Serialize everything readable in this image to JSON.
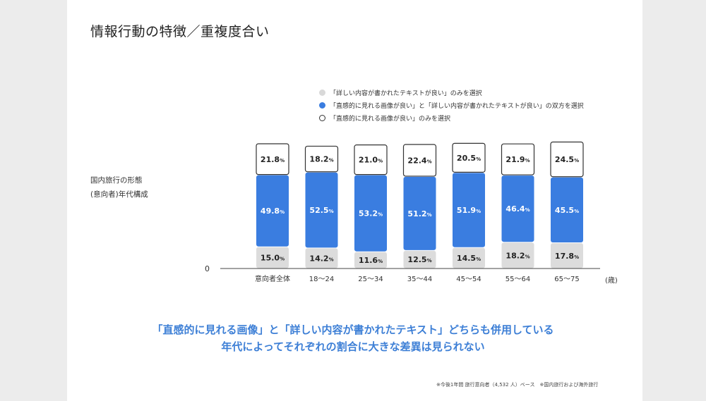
{
  "title": "情報行動の特徴／重複度合い",
  "side_label": [
    "国内旅行の形態",
    "(意向者)年代構成"
  ],
  "zero_label": "0",
  "unit_label": "(歳)",
  "legend": [
    {
      "label": "「詳しい内容が書かれたテキストが良い」のみを選択",
      "color": "#d9d9d9",
      "border": "#d9d9d9"
    },
    {
      "label": "「直感的に見れる画像が良い」と「詳しい内容が書かれたテキストが良い」の双方を選択",
      "color": "#3a7de0",
      "border": "#3a7de0"
    },
    {
      "label": "「直感的に見れる画像が良い」のみを選択",
      "color": "#ffffff",
      "border": "#333333"
    }
  ],
  "conclusion": [
    "「直感的に見れる画像」と「詳しい内容が書かれたテキスト」どちらも併用している",
    "年代によってそれぞれの割合に大きな差異は見られない"
  ],
  "footnote": "※今後1年間 旅行意向者（4,532 人）ベース　※国内旅行および海外旅行",
  "chart_data": {
    "type": "bar",
    "stacked": true,
    "categories": [
      "意向者全体",
      "18〜24",
      "25〜34",
      "35〜44",
      "45〜54",
      "55〜64",
      "65〜75"
    ],
    "series": [
      {
        "name": "「詳しい内容が書かれたテキストが良い」のみを選択",
        "color": "#dcdcdc",
        "text_color": "#222222",
        "values": [
          15.0,
          14.2,
          11.6,
          12.5,
          14.5,
          18.2,
          17.8
        ],
        "labels": [
          "15.0",
          "14.2",
          "11.6",
          "12.5",
          "14.5",
          "18.2",
          "17.8"
        ]
      },
      {
        "name": "「直感的に見れる画像が良い」と「詳しい内容が書かれたテキストが良い」の双方を選択",
        "color": "#3a7de0",
        "text_color": "#ffffff",
        "values": [
          49.8,
          52.5,
          53.2,
          51.2,
          51.9,
          46.4,
          45.5
        ],
        "labels": [
          "49.8",
          "52.5",
          "53.2",
          "51.2",
          "51.9",
          "46.4",
          "45.5"
        ]
      },
      {
        "name": "「直感的に見れる画像が良い」のみを選択",
        "color": "#ffffff",
        "text_color": "#222222",
        "values": [
          21.8,
          18.2,
          21.0,
          22.4,
          20.5,
          21.9,
          24.5
        ],
        "labels": [
          "21.8",
          "18.2",
          "21.0",
          "22.4",
          "20.5",
          "21.9",
          "24.5"
        ]
      }
    ],
    "totals": [
      86.6,
      84.9,
      85.8,
      86.1,
      86.9,
      86.5,
      87.8
    ],
    "value_suffix": "%",
    "ylim": [
      0,
      100
    ],
    "grid": false,
    "legend_position": "top-right"
  }
}
